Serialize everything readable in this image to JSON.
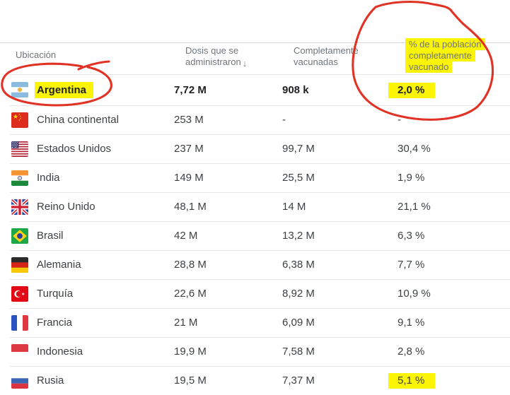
{
  "table": {
    "columns": [
      {
        "label": "Ubicación"
      },
      {
        "label": "Dosis que se administraron",
        "sort_icon": "↓",
        "sorted": true
      },
      {
        "label": "Completamente vacunadas"
      },
      {
        "label": "% de la población completamente vacunado",
        "highlighted": true
      }
    ],
    "rows": [
      {
        "country": "Argentina",
        "flag": "argentina",
        "doses": "7,72 M",
        "fully_vaccinated": "908 k",
        "pct_fully_vaccinated": "2,0 %",
        "bold": true,
        "country_highlighted": true,
        "pct_highlighted": true
      },
      {
        "country": "China continental",
        "flag": "china",
        "doses": "253 M",
        "fully_vaccinated": "-",
        "pct_fully_vaccinated": "-"
      },
      {
        "country": "Estados Unidos",
        "flag": "usa",
        "doses": "237 M",
        "fully_vaccinated": "99,7 M",
        "pct_fully_vaccinated": "30,4 %"
      },
      {
        "country": "India",
        "flag": "india",
        "doses": "149 M",
        "fully_vaccinated": "25,5 M",
        "pct_fully_vaccinated": "1,9 %"
      },
      {
        "country": "Reino Unido",
        "flag": "uk",
        "doses": "48,1 M",
        "fully_vaccinated": "14 M",
        "pct_fully_vaccinated": "21,1 %"
      },
      {
        "country": "Brasil",
        "flag": "brazil",
        "doses": "42 M",
        "fully_vaccinated": "13,2 M",
        "pct_fully_vaccinated": "6,3 %"
      },
      {
        "country": "Alemania",
        "flag": "germany",
        "doses": "28,8 M",
        "fully_vaccinated": "6,38 M",
        "pct_fully_vaccinated": "7,7 %"
      },
      {
        "country": "Turquía",
        "flag": "turkey",
        "doses": "22,6 M",
        "fully_vaccinated": "8,92 M",
        "pct_fully_vaccinated": "10,9 %"
      },
      {
        "country": "Francia",
        "flag": "france",
        "doses": "21 M",
        "fully_vaccinated": "6,09 M",
        "pct_fully_vaccinated": "9,1 %"
      },
      {
        "country": "Indonesia",
        "flag": "indonesia",
        "doses": "19,9 M",
        "fully_vaccinated": "7,58 M",
        "pct_fully_vaccinated": "2,8 %"
      },
      {
        "country": "Rusia",
        "flag": "russia",
        "doses": "19,5 M",
        "fully_vaccinated": "7,37 M",
        "pct_fully_vaccinated": "5,1 %",
        "pct_highlighted": true
      }
    ]
  },
  "annotations": {
    "pen_color": "#e02a1d",
    "highlight_color": "#fbf403",
    "circled_items": [
      "Argentina row (flag and name)",
      "% de la población completamente vacunado column header and 2,0 % value"
    ]
  }
}
